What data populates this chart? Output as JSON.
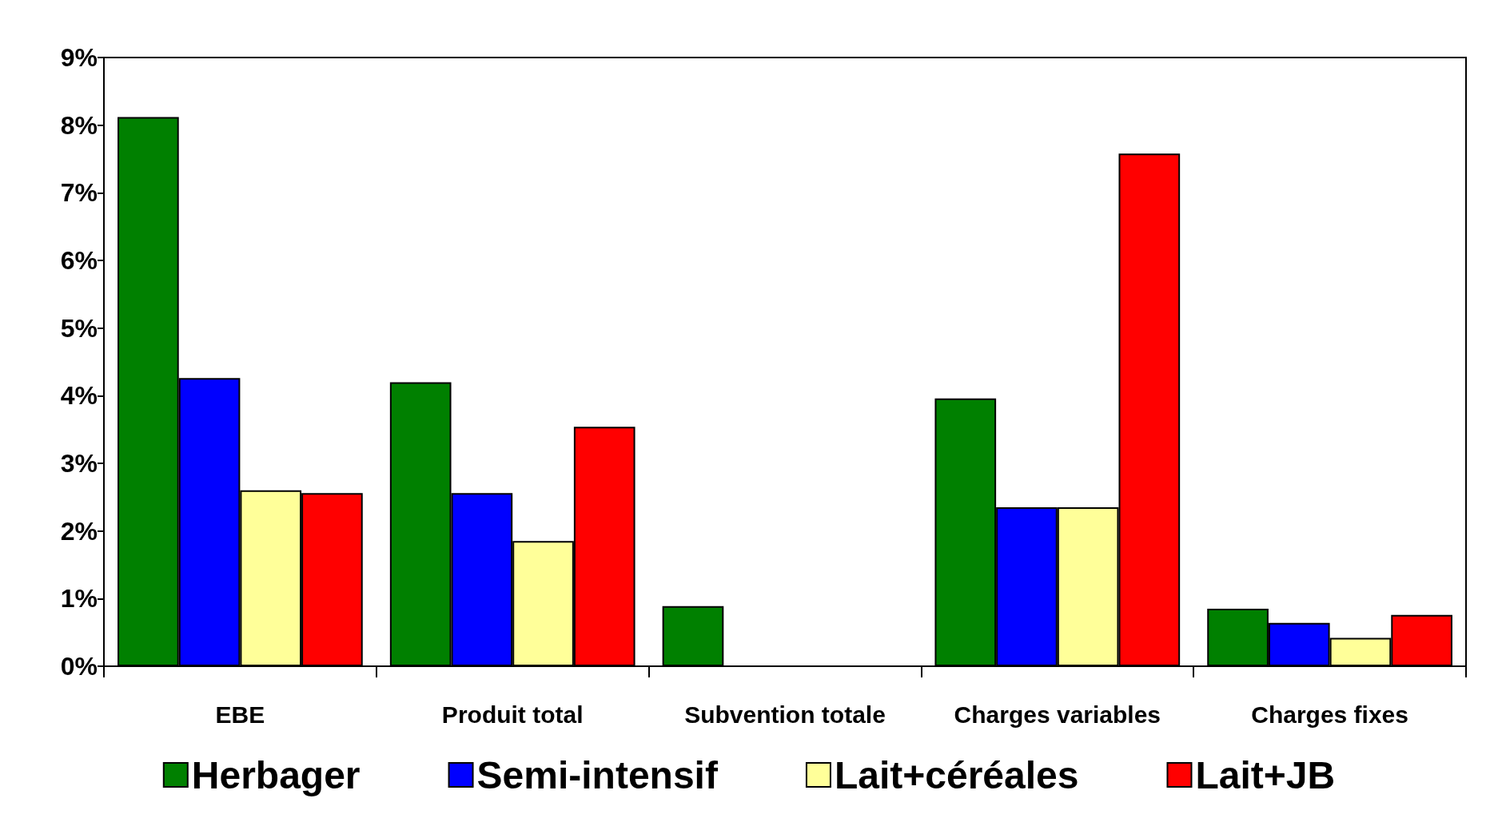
{
  "chart_data": {
    "type": "bar",
    "categories": [
      "EBE",
      "Produit total",
      "Subvention totale",
      "Charges variables",
      "Charges fixes"
    ],
    "series": [
      {
        "name": "Herbager",
        "color": "#008000",
        "values": [
          8.12,
          4.2,
          0.89,
          3.96,
          0.85
        ]
      },
      {
        "name": "Semi-intensif",
        "color": "#0000ff",
        "values": [
          4.26,
          2.56,
          null,
          2.35,
          0.64
        ]
      },
      {
        "name": "Lait+céréales",
        "color": "#ffff99",
        "values": [
          2.6,
          1.85,
          null,
          2.35,
          0.42
        ]
      },
      {
        "name": "Lait+JB",
        "color": "#ff0000",
        "values": [
          2.56,
          3.54,
          null,
          7.58,
          0.76
        ]
      }
    ],
    "ylim": [
      0,
      9
    ],
    "yticks": [
      {
        "value": 0,
        "label": "0%"
      },
      {
        "value": 1,
        "label": "1%"
      },
      {
        "value": 2,
        "label": "2%"
      },
      {
        "value": 3,
        "label": "3%"
      },
      {
        "value": 4,
        "label": "4%"
      },
      {
        "value": 5,
        "label": "5%"
      },
      {
        "value": 6,
        "label": "6%"
      },
      {
        "value": 7,
        "label": "7%"
      },
      {
        "value": 8,
        "label": "8%"
      },
      {
        "value": 9,
        "label": "9%"
      }
    ],
    "grid": false,
    "legend": "bottom"
  }
}
